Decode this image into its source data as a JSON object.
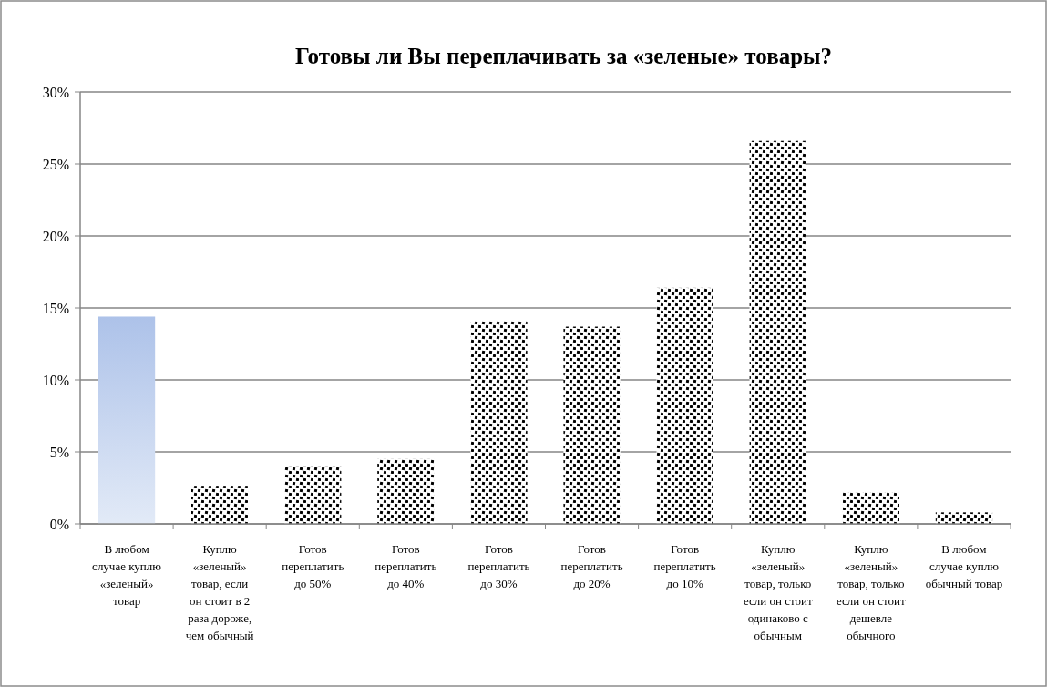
{
  "chart_data": {
    "type": "bar",
    "title": "Готовы ли Вы переплачивать за «зеленые» товары?",
    "categories": [
      "В любом случае куплю «зеленый» товар",
      "Куплю «зеленый» товар, если он стоит в 2 раза дороже, чем обычный",
      "Готов переплатить до 50%",
      "Готов переплатить до 40%",
      "Готов переплатить до 30%",
      "Готов переплатить до 20%",
      "Готов переплатить до 10%",
      "Куплю «зеленый» товар, только если он стоит одинаково с обычным",
      "Куплю «зеленый» товар, только если он стоит дешевле обычного",
      "В любом случае куплю обычный товар"
    ],
    "values": [
      14.4,
      2.65,
      4.0,
      4.5,
      14.1,
      13.7,
      16.4,
      26.6,
      2.2,
      0.8
    ],
    "colors": [
      "#adc2e9",
      "#000000",
      "#000000",
      "#000000",
      "#000000",
      "#000000",
      "#000000",
      "#000000",
      "#000000",
      "#000000"
    ],
    "ylim": [
      0,
      30
    ],
    "yticks": [
      {
        "value": 0,
        "label": "0%"
      },
      {
        "value": 5,
        "label": "5%"
      },
      {
        "value": 10,
        "label": "10%"
      },
      {
        "value": 15,
        "label": "15%"
      },
      {
        "value": 20,
        "label": "20%"
      },
      {
        "value": 25,
        "label": "25%"
      },
      {
        "value": 30,
        "label": "30%"
      }
    ],
    "grid": "y"
  }
}
